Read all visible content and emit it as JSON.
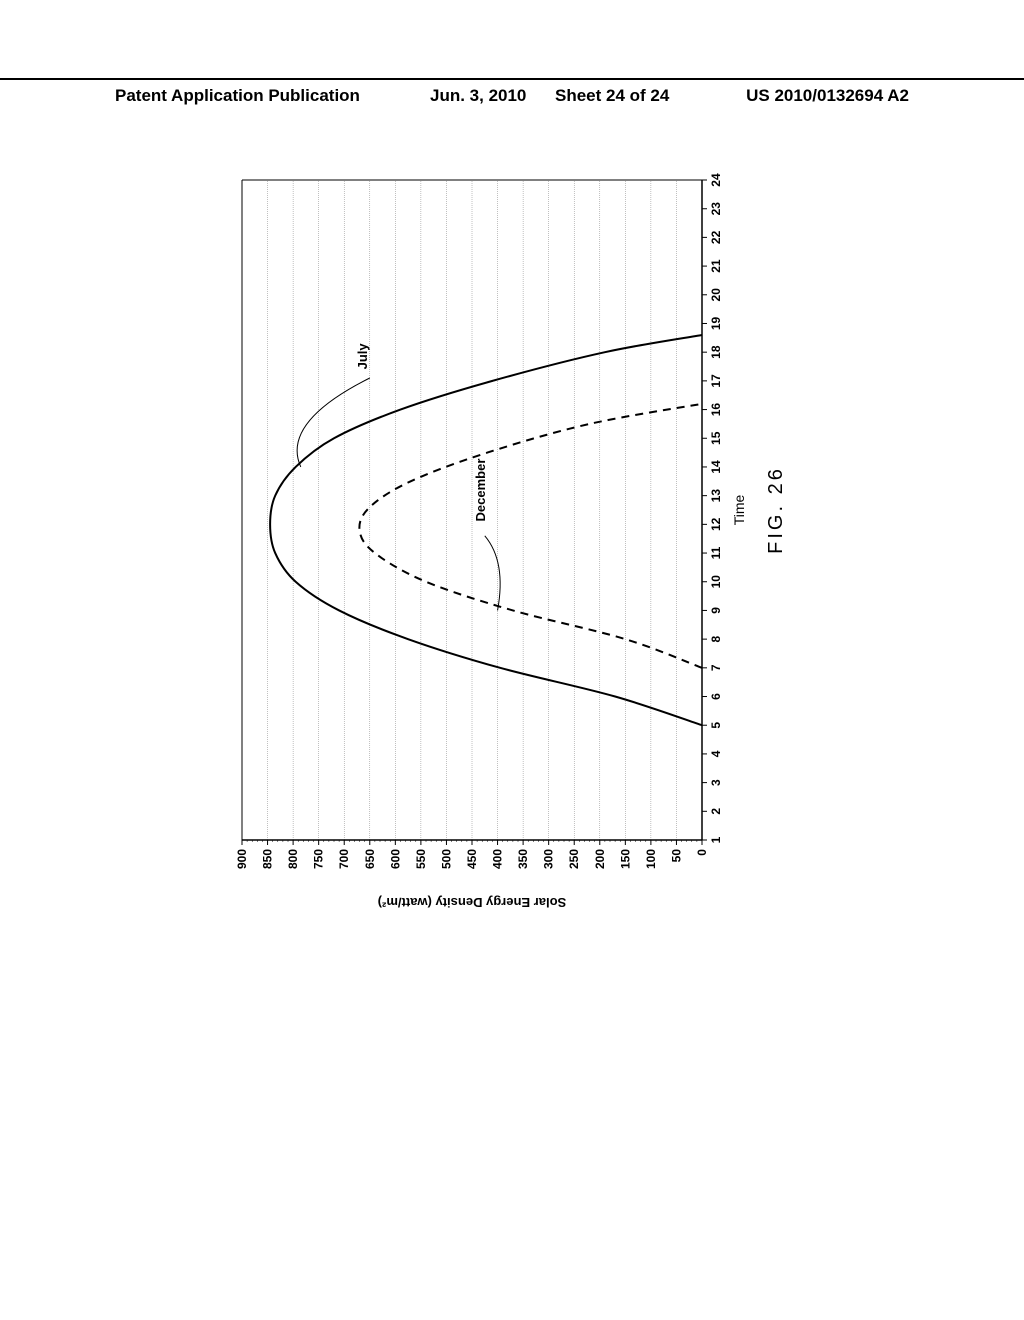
{
  "header": {
    "left_text": "Patent Application Publication",
    "date_text": "Jun. 3, 2010",
    "sheet_text": "Sheet 24 of 24",
    "pub_number": "US 2010/0132694 A2"
  },
  "figure": {
    "label": "FIG. 26",
    "xlabel": "Time",
    "ylabel": "Solar Energy Density  (watt/m²)",
    "xlim": [
      1,
      24
    ],
    "ylim": [
      0,
      900
    ],
    "xtick_step": 1,
    "ytick_step": 50,
    "background_color": "#ffffff",
    "grid_color": "#808080",
    "axis_color": "#000000",
    "series": {
      "july": {
        "label": "July",
        "label_pos": {
          "x": 17.4,
          "y": 655
        },
        "color": "#000000",
        "width": 2.0,
        "dash": "none",
        "data": [
          {
            "x": 5,
            "y": 0
          },
          {
            "x": 6,
            "y": 170
          },
          {
            "x": 7,
            "y": 395
          },
          {
            "x": 8,
            "y": 575
          },
          {
            "x": 9,
            "y": 710
          },
          {
            "x": 10,
            "y": 795
          },
          {
            "x": 11,
            "y": 835
          },
          {
            "x": 12,
            "y": 845
          },
          {
            "x": 13,
            "y": 835
          },
          {
            "x": 14,
            "y": 795
          },
          {
            "x": 15,
            "y": 720
          },
          {
            "x": 16,
            "y": 590
          },
          {
            "x": 17,
            "y": 410
          },
          {
            "x": 18,
            "y": 190
          },
          {
            "x": 18.6,
            "y": 0
          }
        ]
      },
      "december": {
        "label": "December",
        "label_pos": {
          "x": 12.1,
          "y": 425
        },
        "color": "#000000",
        "width": 2.0,
        "dash": "8 6",
        "data": [
          {
            "x": 7,
            "y": 0
          },
          {
            "x": 8,
            "y": 150
          },
          {
            "x": 9,
            "y": 370
          },
          {
            "x": 10,
            "y": 540
          },
          {
            "x": 11,
            "y": 640
          },
          {
            "x": 11.8,
            "y": 670
          },
          {
            "x": 12.6,
            "y": 650
          },
          {
            "x": 13.5,
            "y": 570
          },
          {
            "x": 14.5,
            "y": 420
          },
          {
            "x": 15.5,
            "y": 220
          },
          {
            "x": 16.2,
            "y": 0
          }
        ]
      }
    },
    "leader_line": {
      "from": {
        "x": 14.0,
        "y": 785
      },
      "to": {
        "x": 17.1,
        "y": 650
      }
    },
    "leader_line_dec": {
      "from": {
        "x": 9.0,
        "y": 400
      },
      "to": {
        "x": 11.6,
        "y": 425
      }
    }
  }
}
